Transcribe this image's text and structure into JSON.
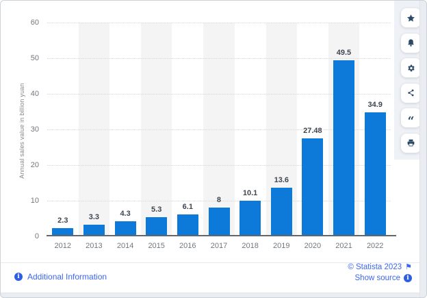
{
  "chart_data": {
    "type": "bar",
    "title": "",
    "xlabel": "",
    "ylabel": "Annual sales value in billion yuan",
    "categories": [
      "2012",
      "2013",
      "2014",
      "2015",
      "2016",
      "2017",
      "2018",
      "2019",
      "2020",
      "2021",
      "2022"
    ],
    "values": [
      2.3,
      3.3,
      4.3,
      5.3,
      6.1,
      8,
      10.1,
      13.6,
      27.48,
      49.5,
      34.9
    ],
    "value_labels": [
      "2.3",
      "3.3",
      "4.3",
      "5.3",
      "6.1",
      "8",
      "10.1",
      "13.6",
      "27.48",
      "49.5",
      "34.9"
    ],
    "ylim": [
      0,
      60
    ],
    "yticks": [
      0,
      10,
      20,
      30,
      40,
      50,
      60
    ],
    "grid": "horizontal-dotted",
    "legend": "none",
    "bar_color": "#0d7ad9",
    "striped_column_indices": [
      1,
      3,
      5,
      7,
      9
    ]
  },
  "toolbar": {
    "buttons": [
      {
        "name": "favorite",
        "icon": "star-icon"
      },
      {
        "name": "notifications",
        "icon": "bell-icon"
      },
      {
        "name": "settings",
        "icon": "gear-icon"
      },
      {
        "name": "share",
        "icon": "share-icon"
      },
      {
        "name": "cite",
        "icon": "quote-icon",
        "glyph": "“"
      },
      {
        "name": "print",
        "icon": "print-icon"
      }
    ]
  },
  "footer": {
    "additional_information": "Additional Information",
    "copyright": "© Statista 2023",
    "show_source": "Show source",
    "info_glyph": "i",
    "flag_glyph": "⚑"
  },
  "colors": {
    "bar": "#0d7ad9",
    "link": "#3b66ee",
    "icon": "#2b4a68",
    "rail_background": "#eef1f5",
    "page_background": "#e9edf1",
    "stripe": "#f4f4f4"
  }
}
